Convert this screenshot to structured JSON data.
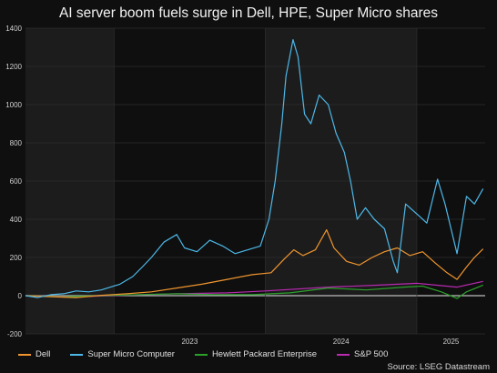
{
  "title": "AI server boom fuels surge in Dell, HPE, Super Micro shares",
  "source": "Source: LSEG Datastream",
  "chart_data": {
    "type": "line",
    "title": "AI server boom fuels surge in Dell, HPE, Super Micro shares",
    "ylim": [
      -200,
      1400
    ],
    "yticks": [
      -200,
      0,
      200,
      400,
      600,
      800,
      1000,
      1200,
      1400
    ],
    "xlim": [
      "2022-06-01",
      "2025-06-15"
    ],
    "xticks": [
      {
        "label": "2023",
        "date": "2023-01-01"
      },
      {
        "label": "2024",
        "date": "2024-01-01"
      },
      {
        "label": "2025",
        "date": "2025-01-01"
      }
    ],
    "shaded_bands": [
      {
        "from": "2022-06-01",
        "to": "2023-01-01"
      },
      {
        "from": "2024-01-01",
        "to": "2025-01-01"
      }
    ],
    "grid": true,
    "legend_position": "bottom",
    "series": [
      {
        "name": "Dell",
        "color": "#f0952e",
        "x": [
          "2022-06-01",
          "2022-08-01",
          "2022-10-01",
          "2022-12-01",
          "2023-02-01",
          "2023-04-01",
          "2023-06-01",
          "2023-08-01",
          "2023-10-01",
          "2023-12-01",
          "2024-01-15",
          "2024-02-15",
          "2024-03-10",
          "2024-04-01",
          "2024-05-01",
          "2024-05-28",
          "2024-06-15",
          "2024-07-15",
          "2024-08-15",
          "2024-09-15",
          "2024-10-15",
          "2024-11-15",
          "2024-12-15",
          "2025-01-15",
          "2025-02-15",
          "2025-03-15",
          "2025-04-08",
          "2025-05-01",
          "2025-05-20",
          "2025-06-10"
        ],
        "y": [
          0,
          -5,
          -10,
          2,
          10,
          20,
          40,
          60,
          85,
          110,
          120,
          190,
          240,
          210,
          240,
          345,
          250,
          180,
          160,
          200,
          230,
          250,
          210,
          230,
          170,
          120,
          85,
          150,
          200,
          245
        ]
      },
      {
        "name": "Super Micro Computer",
        "color": "#4db8e8",
        "x": [
          "2022-06-01",
          "2022-07-01",
          "2022-08-01",
          "2022-09-01",
          "2022-10-01",
          "2022-11-01",
          "2022-12-01",
          "2023-01-15",
          "2023-02-15",
          "2023-03-10",
          "2023-04-01",
          "2023-05-01",
          "2023-06-01",
          "2023-06-20",
          "2023-07-20",
          "2023-08-20",
          "2023-09-20",
          "2023-10-20",
          "2023-11-20",
          "2023-12-20",
          "2024-01-10",
          "2024-01-25",
          "2024-02-10",
          "2024-02-20",
          "2024-03-08",
          "2024-03-20",
          "2024-04-05",
          "2024-04-20",
          "2024-05-10",
          "2024-06-01",
          "2024-06-20",
          "2024-07-10",
          "2024-07-25",
          "2024-08-10",
          "2024-08-30",
          "2024-09-20",
          "2024-10-15",
          "2024-11-05",
          "2024-11-15",
          "2024-12-05",
          "2025-01-05",
          "2025-01-25",
          "2025-02-20",
          "2025-03-10",
          "2025-04-08",
          "2025-05-01",
          "2025-05-20",
          "2025-06-10"
        ],
        "y": [
          0,
          -10,
          5,
          10,
          25,
          20,
          30,
          60,
          100,
          150,
          200,
          280,
          320,
          250,
          230,
          290,
          260,
          220,
          240,
          260,
          400,
          600,
          900,
          1150,
          1340,
          1250,
          950,
          900,
          1050,
          1000,
          850,
          750,
          600,
          400,
          460,
          400,
          350,
          180,
          120,
          480,
          420,
          380,
          610,
          480,
          220,
          520,
          480,
          560
        ]
      },
      {
        "name": "Hewlett Packard Enterprise",
        "color": "#2aa02a",
        "x": [
          "2022-06-01",
          "2022-09-01",
          "2022-12-01",
          "2023-03-01",
          "2023-06-01",
          "2023-09-01",
          "2023-12-01",
          "2024-03-01",
          "2024-06-01",
          "2024-09-01",
          "2024-12-01",
          "2025-01-15",
          "2025-03-01",
          "2025-04-08",
          "2025-05-01",
          "2025-06-10"
        ],
        "y": [
          0,
          -5,
          0,
          5,
          10,
          5,
          5,
          15,
          40,
          30,
          45,
          50,
          20,
          -15,
          20,
          55
        ]
      },
      {
        "name": "S&P 500",
        "color": "#b82ab0",
        "x": [
          "2022-06-01",
          "2022-10-01",
          "2023-01-01",
          "2023-06-01",
          "2023-10-01",
          "2024-01-01",
          "2024-06-01",
          "2024-10-01",
          "2025-01-01",
          "2025-04-08",
          "2025-06-10"
        ],
        "y": [
          0,
          -5,
          0,
          10,
          15,
          25,
          45,
          55,
          65,
          45,
          75
        ]
      }
    ]
  }
}
